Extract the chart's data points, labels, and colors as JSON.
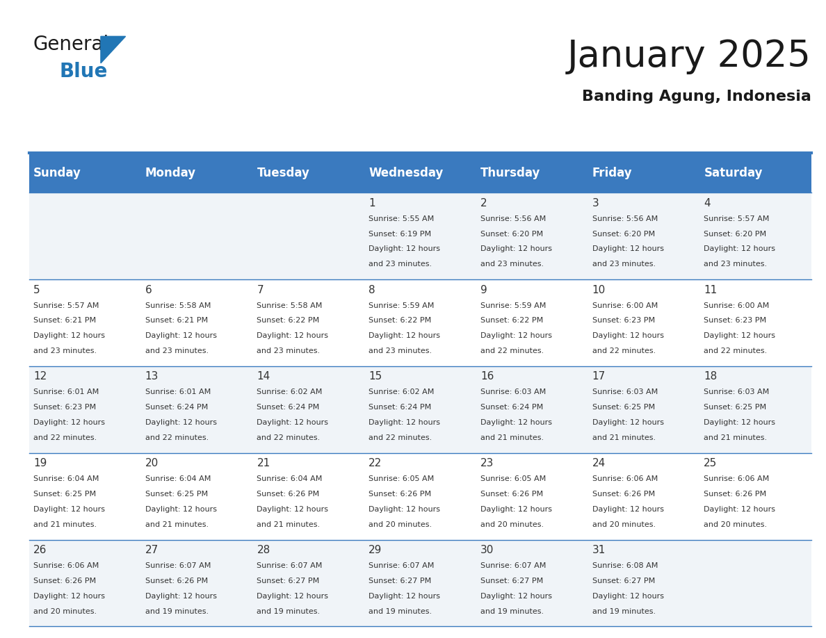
{
  "title": "January 2025",
  "subtitle": "Banding Agung, Indonesia",
  "days_of_week": [
    "Sunday",
    "Monday",
    "Tuesday",
    "Wednesday",
    "Thursday",
    "Friday",
    "Saturday"
  ],
  "header_bg": "#3a7abf",
  "header_text": "#ffffff",
  "cell_bg_light": "#f0f4f8",
  "cell_bg_white": "#ffffff",
  "border_color": "#3a7abf",
  "text_color": "#333333",
  "calendar_data": [
    [
      null,
      null,
      null,
      {
        "day": 1,
        "sunrise": "5:55 AM",
        "sunset": "6:19 PM",
        "daylight": "12 hours and 23 minutes"
      },
      {
        "day": 2,
        "sunrise": "5:56 AM",
        "sunset": "6:20 PM",
        "daylight": "12 hours and 23 minutes"
      },
      {
        "day": 3,
        "sunrise": "5:56 AM",
        "sunset": "6:20 PM",
        "daylight": "12 hours and 23 minutes"
      },
      {
        "day": 4,
        "sunrise": "5:57 AM",
        "sunset": "6:20 PM",
        "daylight": "12 hours and 23 minutes"
      }
    ],
    [
      {
        "day": 5,
        "sunrise": "5:57 AM",
        "sunset": "6:21 PM",
        "daylight": "12 hours and 23 minutes"
      },
      {
        "day": 6,
        "sunrise": "5:58 AM",
        "sunset": "6:21 PM",
        "daylight": "12 hours and 23 minutes"
      },
      {
        "day": 7,
        "sunrise": "5:58 AM",
        "sunset": "6:22 PM",
        "daylight": "12 hours and 23 minutes"
      },
      {
        "day": 8,
        "sunrise": "5:59 AM",
        "sunset": "6:22 PM",
        "daylight": "12 hours and 23 minutes"
      },
      {
        "day": 9,
        "sunrise": "5:59 AM",
        "sunset": "6:22 PM",
        "daylight": "12 hours and 22 minutes"
      },
      {
        "day": 10,
        "sunrise": "6:00 AM",
        "sunset": "6:23 PM",
        "daylight": "12 hours and 22 minutes"
      },
      {
        "day": 11,
        "sunrise": "6:00 AM",
        "sunset": "6:23 PM",
        "daylight": "12 hours and 22 minutes"
      }
    ],
    [
      {
        "day": 12,
        "sunrise": "6:01 AM",
        "sunset": "6:23 PM",
        "daylight": "12 hours and 22 minutes"
      },
      {
        "day": 13,
        "sunrise": "6:01 AM",
        "sunset": "6:24 PM",
        "daylight": "12 hours and 22 minutes"
      },
      {
        "day": 14,
        "sunrise": "6:02 AM",
        "sunset": "6:24 PM",
        "daylight": "12 hours and 22 minutes"
      },
      {
        "day": 15,
        "sunrise": "6:02 AM",
        "sunset": "6:24 PM",
        "daylight": "12 hours and 22 minutes"
      },
      {
        "day": 16,
        "sunrise": "6:03 AM",
        "sunset": "6:24 PM",
        "daylight": "12 hours and 21 minutes"
      },
      {
        "day": 17,
        "sunrise": "6:03 AM",
        "sunset": "6:25 PM",
        "daylight": "12 hours and 21 minutes"
      },
      {
        "day": 18,
        "sunrise": "6:03 AM",
        "sunset": "6:25 PM",
        "daylight": "12 hours and 21 minutes"
      }
    ],
    [
      {
        "day": 19,
        "sunrise": "6:04 AM",
        "sunset": "6:25 PM",
        "daylight": "12 hours and 21 minutes"
      },
      {
        "day": 20,
        "sunrise": "6:04 AM",
        "sunset": "6:25 PM",
        "daylight": "12 hours and 21 minutes"
      },
      {
        "day": 21,
        "sunrise": "6:04 AM",
        "sunset": "6:26 PM",
        "daylight": "12 hours and 21 minutes"
      },
      {
        "day": 22,
        "sunrise": "6:05 AM",
        "sunset": "6:26 PM",
        "daylight": "12 hours and 20 minutes"
      },
      {
        "day": 23,
        "sunrise": "6:05 AM",
        "sunset": "6:26 PM",
        "daylight": "12 hours and 20 minutes"
      },
      {
        "day": 24,
        "sunrise": "6:06 AM",
        "sunset": "6:26 PM",
        "daylight": "12 hours and 20 minutes"
      },
      {
        "day": 25,
        "sunrise": "6:06 AM",
        "sunset": "6:26 PM",
        "daylight": "12 hours and 20 minutes"
      }
    ],
    [
      {
        "day": 26,
        "sunrise": "6:06 AM",
        "sunset": "6:26 PM",
        "daylight": "12 hours and 20 minutes"
      },
      {
        "day": 27,
        "sunrise": "6:07 AM",
        "sunset": "6:26 PM",
        "daylight": "12 hours and 19 minutes"
      },
      {
        "day": 28,
        "sunrise": "6:07 AM",
        "sunset": "6:27 PM",
        "daylight": "12 hours and 19 minutes"
      },
      {
        "day": 29,
        "sunrise": "6:07 AM",
        "sunset": "6:27 PM",
        "daylight": "12 hours and 19 minutes"
      },
      {
        "day": 30,
        "sunrise": "6:07 AM",
        "sunset": "6:27 PM",
        "daylight": "12 hours and 19 minutes"
      },
      {
        "day": 31,
        "sunrise": "6:08 AM",
        "sunset": "6:27 PM",
        "daylight": "12 hours and 19 minutes"
      },
      null
    ]
  ],
  "logo_text_general": "General",
  "logo_text_blue": "Blue",
  "general_color": "#1a1a1a",
  "blue_color": "#2176b5",
  "title_fontsize": 38,
  "subtitle_fontsize": 16,
  "header_fontsize": 12,
  "day_num_fontsize": 11,
  "cell_text_fontsize": 8
}
